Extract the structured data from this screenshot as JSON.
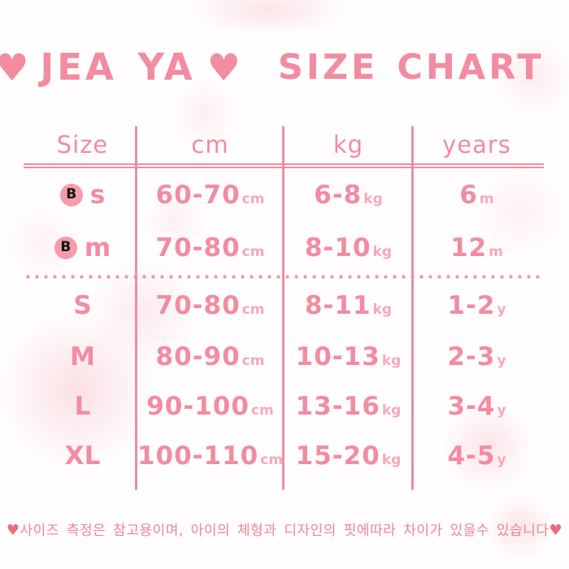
{
  "title": {
    "heart_left": "♥",
    "brand": "JEA YA",
    "heart_right": "♥",
    "heading": "SIZE CHART"
  },
  "table": {
    "headers": {
      "size": "Size",
      "cm": "cm",
      "kg": "kg",
      "years": "years"
    },
    "baby_rows": [
      {
        "badge": "B",
        "size": "s",
        "cm": "60-70",
        "cm_unit": "cm",
        "kg": "6-8",
        "kg_unit": "kg",
        "years": "6",
        "years_unit": "m"
      },
      {
        "badge": "B",
        "size": "m",
        "cm": "70-80",
        "cm_unit": "cm",
        "kg": "8-10",
        "kg_unit": "kg",
        "years": "12",
        "years_unit": "m"
      }
    ],
    "kid_rows": [
      {
        "size": "S",
        "cm": "70-80",
        "cm_unit": "cm",
        "kg": "8-11",
        "kg_unit": "kg",
        "years": "1-2",
        "years_unit": "y"
      },
      {
        "size": "M",
        "cm": "80-90",
        "cm_unit": "cm",
        "kg": "10-13",
        "kg_unit": "kg",
        "years": "2-3",
        "years_unit": "y"
      },
      {
        "size": "L",
        "cm": "90-100",
        "cm_unit": "cm",
        "kg": "13-16",
        "kg_unit": "kg",
        "years": "3-4",
        "years_unit": "y"
      },
      {
        "size": "XL",
        "cm": "100-110",
        "cm_unit": "cm",
        "kg": "15-20",
        "kg_unit": "kg",
        "years": "4-5",
        "years_unit": "y"
      }
    ]
  },
  "footer": {
    "heart_left": "♥",
    "text": "사이즈 측정은 참고용이며, 아이의 체형과 디자인의 핏에따라 차이가 있을수 있습니다",
    "heart_right": "♥"
  },
  "colors": {
    "accent_pink": "#f28ca0",
    "unit_pink": "#f6a9b8",
    "line_pink": "#f08ca0",
    "badge_fill": "#f59cab",
    "badge_letter": "#141414",
    "footer_text": "#ef8494",
    "footer_heart": "#ec6b7c",
    "background": "#fffdfd"
  },
  "chart_data": {
    "type": "table",
    "title": "JEA YA SIZE CHART",
    "columns": [
      "Size",
      "cm",
      "kg",
      "years"
    ],
    "rows": [
      [
        "B s",
        "60-70cm",
        "6-8kg",
        "6m"
      ],
      [
        "B m",
        "70-80cm",
        "8-10kg",
        "12m"
      ],
      [
        "S",
        "70-80cm",
        "8-11kg",
        "1-2y"
      ],
      [
        "M",
        "80-90cm",
        "10-13kg",
        "2-3y"
      ],
      [
        "L",
        "90-100cm",
        "13-16kg",
        "3-4y"
      ],
      [
        "XL",
        "100-110cm",
        "15-20kg",
        "4-5y"
      ]
    ],
    "note": "사이즈 측정은 참고용이며, 아이의 체형과 디자인의 핏에따라 차이가 있을수 있습니다"
  }
}
